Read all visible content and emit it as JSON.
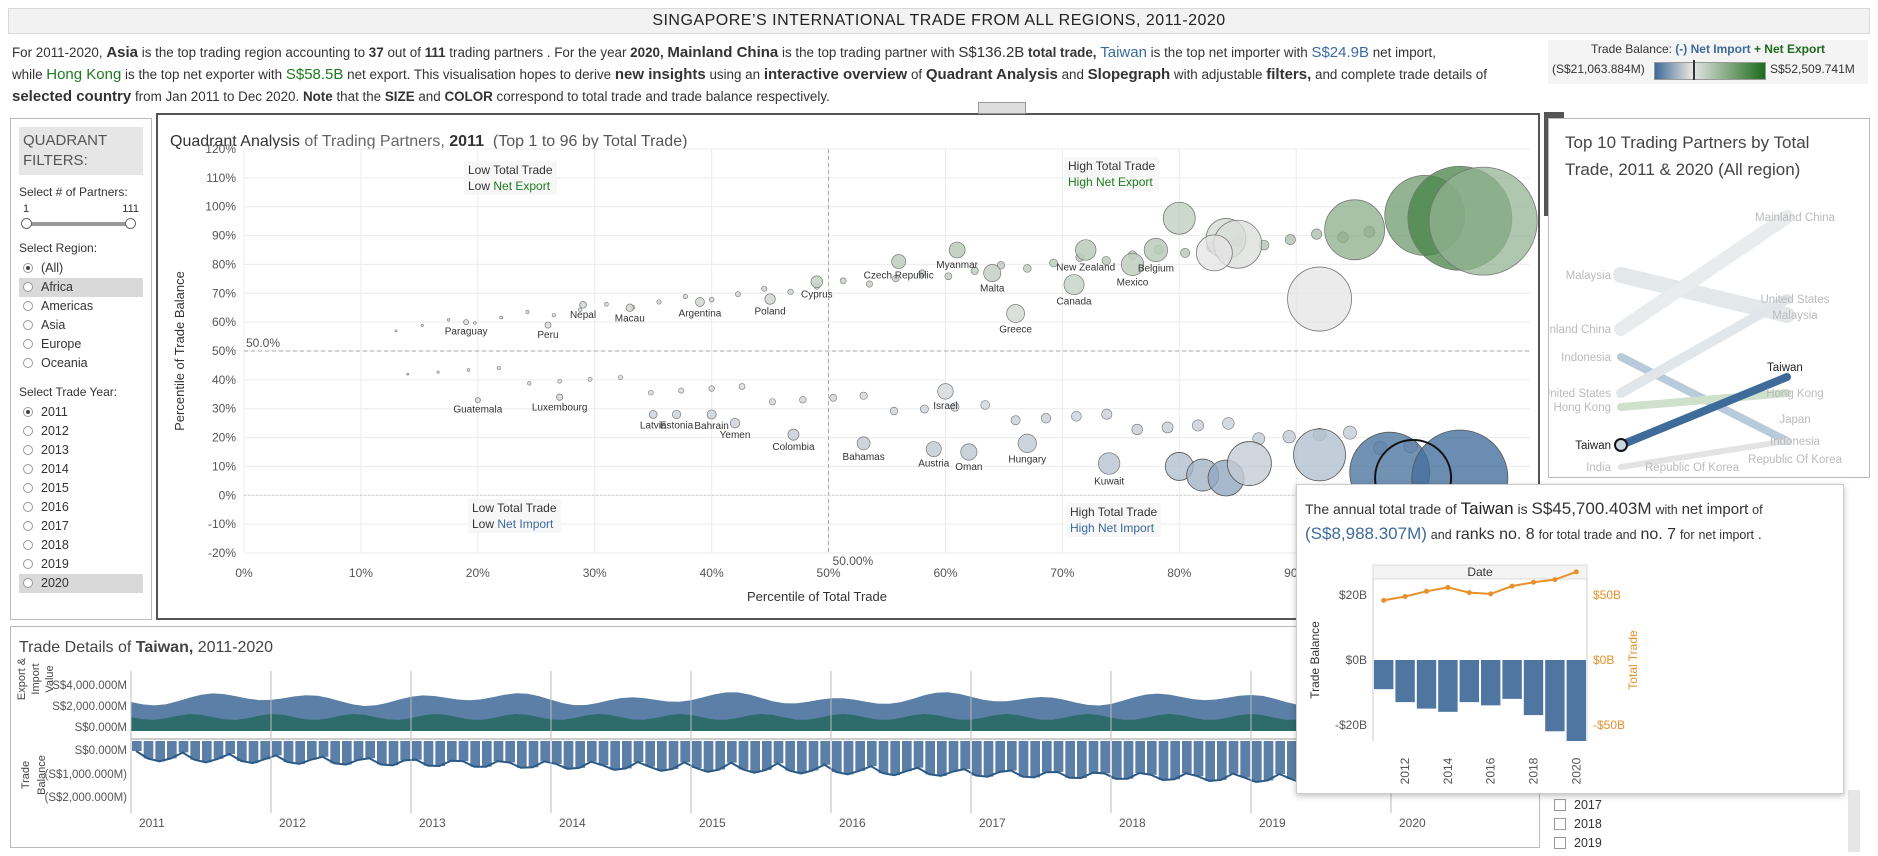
{
  "title": "SINGAPORE’S INTERNATIONAL TRADE FROM ALL REGIONS, 2011-2020",
  "summary": {
    "p1": "For 2011-2020,",
    "asia": "Asia",
    "p2": "is the top trading region accounting to",
    "n37": "37",
    "p3": "out of",
    "n111": "111",
    "p4": "trading partners . For the year",
    "y2020": "2020,",
    "china": "Mainland China",
    "p5": "is the top trading partner with",
    "china_val": "S$136.2B",
    "total_trade": "total trade,",
    "taiwan": "Taiwan",
    "p6": "is the top net importer with",
    "taiwan_val": "S$24.9B",
    "p7": "net import,",
    "p8": "while",
    "hk": "Hong Kong",
    "p9": "is the top net exporter with",
    "hk_val": "S$58.5B",
    "p10": "net export. This visualisation hopes to derive",
    "new_insights": "new insights",
    "p11": "using an",
    "interactive": "interactive overview",
    "p12": "of",
    "qa": "Quadrant Analysis",
    "p13": "and",
    "slope": "Slopegraph",
    "p14": "with adjustable",
    "filters": "filters,",
    "p15": "and complete trade details of",
    "selected": "selected country",
    "p16": "from Jan 2011 to Dec 2020.",
    "note": "Note",
    "p17": "that the",
    "size": "SIZE",
    "p18": "and",
    "color": "COLOR",
    "p19": "correspond to total trade and trade balance respectively."
  },
  "legend": {
    "title_prefix": "Trade Balance:",
    "neg_label": "(-) Net Import",
    "pos_label": "+ Net Export",
    "min": "(S$21,063.884M)",
    "max": "S$52,509.741M",
    "colors": {
      "neg": "#3e6b9a",
      "mid": "#e6e6e6",
      "pos": "#1d6b1d"
    }
  },
  "filters": {
    "heading": "QUADRANT FILTERS:",
    "partners_label": "Select # of Partners:",
    "partners_min": "1",
    "partners_max": "111",
    "region_label": "Select Region:",
    "regions": [
      "(All)",
      "Africa",
      "Americas",
      "Asia",
      "Europe",
      "Oceania"
    ],
    "region_selected": "(All)",
    "region_highlight": "Africa",
    "year_label": "Select Trade Year:",
    "years": [
      "2011",
      "2012",
      "2013",
      "2014",
      "2015",
      "2016",
      "2017",
      "2018",
      "2019",
      "2020"
    ],
    "year_selected": "2011",
    "year_highlight": "2020"
  },
  "quadrant": {
    "title_a": "Quadrant Analysis",
    "title_b": "of Trading Partners,",
    "title_year": "2011",
    "title_c": "(Top",
    "title_n1": "1",
    "title_to": "to",
    "title_n2": "96",
    "title_d": "by Total Trade)",
    "q_tl_1": "Low Total Trade",
    "q_tl_2a": "Low",
    "q_tl_2b": "Net Export",
    "q_tr_1": "High Total Trade",
    "q_tr_2": "High Net Export",
    "q_bl_1": "Low Total Trade",
    "q_bl_2a": "Low",
    "q_bl_2b": "Net Import",
    "q_br_1": "High Total Trade",
    "q_br_2": "High Net Import",
    "ref_y": "50.0%",
    "ref_x": "50.00%"
  },
  "chart_data": [
    {
      "type": "scatter",
      "title": "Quadrant Analysis of Trading Partners, 2011 (Top 1 to 96 by Total Trade)",
      "xlabel": "Percentile of Total Trade",
      "ylabel": "Percentile of Trade Balance",
      "xlim": [
        0,
        1.1
      ],
      "ylim": [
        -0.2,
        1.2
      ],
      "x_ticks": [
        "0%",
        "10%",
        "20%",
        "30%",
        "40%",
        "50%",
        "60%",
        "70%",
        "80%",
        "90%"
      ],
      "y_ticks": [
        "-20%",
        "-10%",
        "0%",
        "10%",
        "20%",
        "30%",
        "40%",
        "50%",
        "60%",
        "70%",
        "80%",
        "90%",
        "100%",
        "110%",
        "120%"
      ],
      "grid": true,
      "labeled_points": [
        {
          "label": "Paraguay",
          "x": 0.19,
          "y": 0.6
        },
        {
          "label": "Peru",
          "x": 0.26,
          "y": 0.59
        },
        {
          "label": "Nepal",
          "x": 0.29,
          "y": 0.66
        },
        {
          "label": "Macau",
          "x": 0.33,
          "y": 0.65
        },
        {
          "label": "Argentina",
          "x": 0.39,
          "y": 0.67
        },
        {
          "label": "Poland",
          "x": 0.45,
          "y": 0.68
        },
        {
          "label": "Cyprus",
          "x": 0.49,
          "y": 0.74
        },
        {
          "label": "Czech Republic",
          "x": 0.56,
          "y": 0.81
        },
        {
          "label": "Myanmar",
          "x": 0.61,
          "y": 0.85
        },
        {
          "label": "Malta",
          "x": 0.64,
          "y": 0.77
        },
        {
          "label": "Greece",
          "x": 0.66,
          "y": 0.63
        },
        {
          "label": "New Zealand",
          "x": 0.72,
          "y": 0.85
        },
        {
          "label": "Canada",
          "x": 0.71,
          "y": 0.73
        },
        {
          "label": "Mexico",
          "x": 0.76,
          "y": 0.8
        },
        {
          "label": "Belgium",
          "x": 0.78,
          "y": 0.85
        },
        {
          "label": "Guatemala",
          "x": 0.2,
          "y": 0.33
        },
        {
          "label": "Luxembourg",
          "x": 0.27,
          "y": 0.34
        },
        {
          "label": "Latvia",
          "x": 0.35,
          "y": 0.28
        },
        {
          "label": "Estonia",
          "x": 0.37,
          "y": 0.28
        },
        {
          "label": "Bahrain",
          "x": 0.4,
          "y": 0.28
        },
        {
          "label": "Yemen",
          "x": 0.42,
          "y": 0.25
        },
        {
          "label": "Colombia",
          "x": 0.47,
          "y": 0.21
        },
        {
          "label": "Bahamas",
          "x": 0.53,
          "y": 0.18
        },
        {
          "label": "Israel",
          "x": 0.6,
          "y": 0.36
        },
        {
          "label": "Austria",
          "x": 0.59,
          "y": 0.16
        },
        {
          "label": "Oman",
          "x": 0.62,
          "y": 0.15
        },
        {
          "label": "Hungary",
          "x": 0.67,
          "y": 0.18
        },
        {
          "label": "Kuwait",
          "x": 0.74,
          "y": 0.11
        }
      ]
    },
    {
      "type": "line",
      "title": "Top 10 Trading Partners by Total Trade, 2011 & 2020 (All region)",
      "categories": [
        "2011",
        "2020"
      ],
      "left_labels": [
        "Malaysia",
        "Mainland China",
        "Indonesia",
        "United States",
        "Hong Kong",
        "Taiwan",
        "India"
      ],
      "right_labels": [
        "Mainland China",
        "United States",
        "Malaysia",
        "Taiwan",
        "Hong Kong",
        "Japan",
        "Indonesia",
        "Republic Of Korea"
      ],
      "bottom_labels": [
        "Republic Of Korea"
      ],
      "highlight": "Taiwan"
    },
    {
      "type": "area",
      "title": "Trade Details of Taiwan, 2011-2020",
      "ylabel_top": "Export & Import Value",
      "ylabel_bottom": "Trade Balance",
      "top_ticks": [
        "S$4,000.000M",
        "S$2,000.000M",
        "S$0.000M"
      ],
      "bottom_ticks": [
        "S$0.000M",
        "(S$1,000.000M)",
        "(S$2,000.000M)"
      ],
      "x_ticks": [
        "2011",
        "2012",
        "2013",
        "2014",
        "2015",
        "2016",
        "2017",
        "2018",
        "2019",
        "2020"
      ]
    },
    {
      "type": "bar",
      "title": "Date",
      "categories": [
        "2011",
        "2012",
        "2013",
        "2014",
        "2015",
        "2016",
        "2017",
        "2018",
        "2019",
        "2020"
      ],
      "x_ticks": [
        "2012",
        "2014",
        "2016",
        "2018",
        "2020"
      ],
      "series": [
        {
          "name": "Trade Balance",
          "values": [
            -9,
            -13,
            -15,
            -16,
            -13,
            -14,
            -12,
            -17,
            -22,
            -25
          ]
        },
        {
          "name": "Total Trade",
          "values": [
            46,
            49,
            53,
            56,
            52,
            51,
            57,
            60,
            62,
            68
          ]
        }
      ],
      "left_ticks": [
        "$20B",
        "$0B",
        "-$20B"
      ],
      "right_ticks": [
        "$50B",
        "$0B",
        "-$50B"
      ],
      "ylabel_left": "Trade Balance",
      "ylabel_right": "Total Trade",
      "ylim_left": [
        -25,
        25
      ],
      "ylim_right": [
        -62.5,
        62.5
      ]
    }
  ],
  "slope": {
    "title_a": "Top 10 Trading Partners by Total",
    "title_b": "Trade, 2011 & 2020",
    "title_c": "(All region)"
  },
  "details": {
    "title_a": "Trade Details of",
    "country": "Taiwan,",
    "title_b": "2011-2020",
    "ylabel_top": "Export & Import Value",
    "ylabel_bottom": "Trade Balance",
    "checkbox_years": [
      "2017",
      "2018",
      "2019"
    ]
  },
  "tooltip": {
    "t1": "The annual total trade of",
    "country": "Taiwan",
    "t2": "is",
    "total": "S$45,700.403M",
    "t3": "with",
    "net_import": "net import",
    "t4": "of",
    "net_val": "(S$8,988.307M)",
    "t5": "and",
    "ranks": "ranks no. 8",
    "t6": "for total trade and",
    "no7": "no. 7",
    "t7": "for",
    "net_import2": "net import",
    "t8": "."
  },
  "controls": [
    "✕",
    "⤢",
    "⊻",
    "⚲",
    "▾"
  ]
}
